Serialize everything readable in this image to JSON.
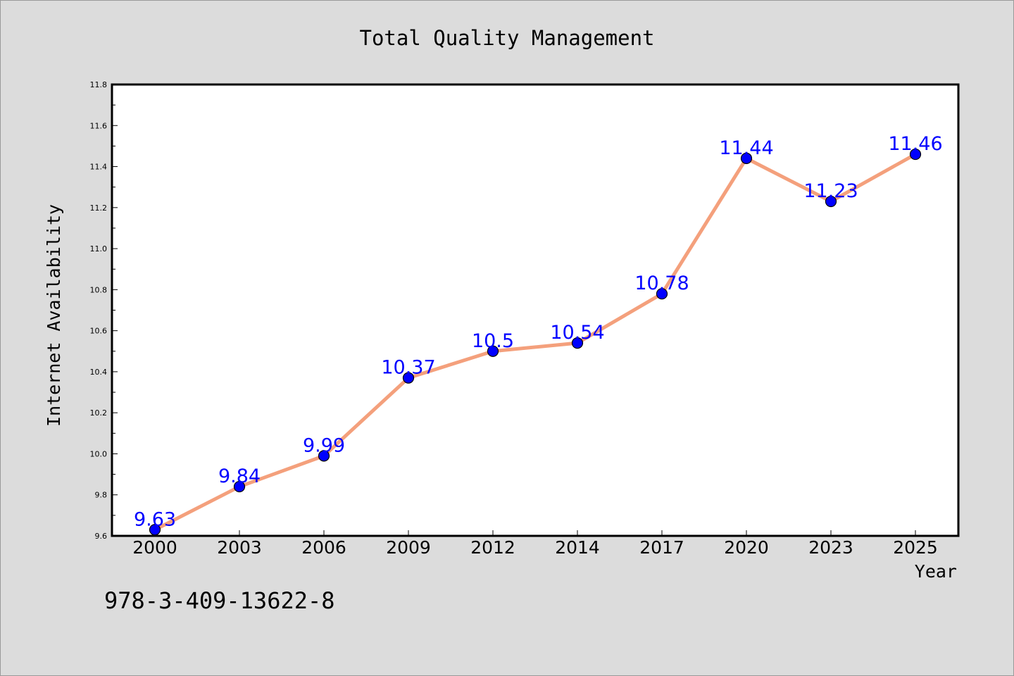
{
  "chart_data": {
    "type": "line",
    "title": "Total Quality Management",
    "xlabel": "Year",
    "ylabel": "Internet Availability",
    "categories": [
      "2000",
      "2003",
      "2006",
      "2009",
      "2012",
      "2014",
      "2017",
      "2020",
      "2023",
      "2025"
    ],
    "series": [
      {
        "values": [
          9.63,
          9.84,
          9.99,
          10.37,
          10.5,
          10.54,
          10.78,
          11.44,
          11.23,
          11.46
        ],
        "data_labels": [
          "9.63",
          "9.84",
          "9.99",
          "10.37",
          "10.5",
          "10.54",
          "10.78",
          "11.44",
          "11.23",
          "11.46"
        ],
        "line_color": "#f4a07c",
        "marker_color": "#0000ff",
        "label_color": "#0000ff"
      }
    ],
    "ylim": [
      9.6,
      11.8
    ],
    "y_ticks": [
      "9.6",
      "9.8",
      "10.0",
      "10.2",
      "10.4",
      "10.6",
      "10.8",
      "11.0",
      "11.2",
      "11.4",
      "11.6",
      "11.8"
    ],
    "grid": false,
    "legend": "none"
  },
  "footer_text": "978-3-409-13622-8",
  "colors": {
    "background": "#dcdcdc",
    "plot_background": "#ffffff",
    "axis": "#000000"
  }
}
